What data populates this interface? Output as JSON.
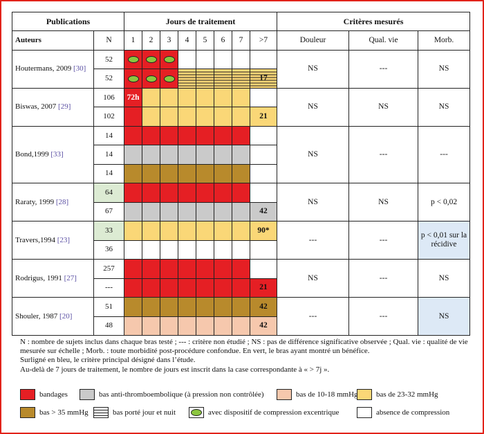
{
  "header": {
    "publications": "Publications",
    "jours": "Jours de traitement",
    "criteres": "Critères mesurés",
    "auteurs": "Auteurs",
    "n": "N",
    "days": [
      "1",
      "2",
      "3",
      "4",
      "5",
      "6",
      "7",
      ">7"
    ],
    "douleur": "Douleur",
    "qual_vie": "Qual. vie",
    "morb": "Morb."
  },
  "studies": [
    {
      "name": "Houtermans, 2009",
      "ref": "[30]",
      "douleur": "NS",
      "qual": "---",
      "morb": "NS",
      "arms": [
        {
          "n": "52",
          "cells": [
            "r",
            "r",
            "r",
            "n",
            "n",
            "n",
            "n",
            "n"
          ],
          "ovals": [
            0,
            1,
            2
          ],
          "val": ""
        },
        {
          "n": "52",
          "cells": [
            "r",
            "r",
            "r",
            "yh",
            "yh",
            "yh",
            "yh",
            "yh"
          ],
          "ovals": [
            0,
            1,
            2
          ],
          "val": "17"
        }
      ]
    },
    {
      "name": "Biswas, 2007",
      "ref": "[29]",
      "douleur": "NS",
      "qual": "NS",
      "morb": "NS",
      "arms": [
        {
          "n": "106",
          "cells": [
            "r",
            "y",
            "y",
            "y",
            "y",
            "y",
            "y",
            "n"
          ],
          "ovals": [],
          "val": "",
          "first": "72h"
        },
        {
          "n": "102",
          "cells": [
            "r",
            "y",
            "y",
            "y",
            "y",
            "y",
            "y",
            "y"
          ],
          "ovals": [],
          "val": "21"
        }
      ]
    },
    {
      "name": "Bond,1999",
      "ref": "[33]",
      "douleur": "NS",
      "qual": "---",
      "morb": "---",
      "arms": [
        {
          "n": "14",
          "cells": [
            "r",
            "r",
            "r",
            "r",
            "r",
            "r",
            "r",
            "n"
          ],
          "ovals": [],
          "val": ""
        },
        {
          "n": "14",
          "cells": [
            "g",
            "g",
            "g",
            "g",
            "g",
            "g",
            "g",
            "n"
          ],
          "ovals": [],
          "val": ""
        },
        {
          "n": "14",
          "cells": [
            "o",
            "o",
            "o",
            "o",
            "o",
            "o",
            "o",
            "n"
          ],
          "ovals": [],
          "val": ""
        }
      ]
    },
    {
      "name": "Raraty, 1999",
      "ref": "[28]",
      "douleur": "NS",
      "qual": "NS",
      "morb": "p < 0,02",
      "arms": [
        {
          "n": "64",
          "nHighlight": true,
          "cells": [
            "r",
            "r",
            "r",
            "r",
            "r",
            "r",
            "r",
            "n"
          ],
          "ovals": [],
          "val": ""
        },
        {
          "n": "67",
          "cells": [
            "g",
            "g",
            "g",
            "g",
            "g",
            "g",
            "g",
            "g"
          ],
          "ovals": [],
          "val": "42"
        }
      ]
    },
    {
      "name": "Travers,1994",
      "ref": "[23]",
      "douleur": "---",
      "qual": "---",
      "morb": "p < 0,01 sur la récidive",
      "morbHighlight": true,
      "arms": [
        {
          "n": "33",
          "nHighlight": true,
          "cells": [
            "y",
            "y",
            "y",
            "y",
            "y",
            "y",
            "y",
            "y"
          ],
          "ovals": [],
          "val": "90*"
        },
        {
          "n": "36",
          "cells": [
            "n",
            "n",
            "n",
            "n",
            "n",
            "n",
            "n",
            "n"
          ],
          "ovals": [],
          "val": ""
        }
      ]
    },
    {
      "name": "Rodrigus, 1991",
      "ref": "[27]",
      "douleur": "NS",
      "qual": "---",
      "morb": "NS",
      "arms": [
        {
          "n": "257",
          "cells": [
            "r",
            "r",
            "r",
            "r",
            "r",
            "r",
            "r",
            "n"
          ],
          "ovals": [],
          "val": ""
        },
        {
          "n": "---",
          "cells": [
            "r",
            "r",
            "r",
            "r",
            "r",
            "r",
            "r",
            "r"
          ],
          "ovals": [],
          "val": "21"
        }
      ]
    },
    {
      "name": "Shouler, 1987",
      "ref": "[20]",
      "douleur": "---",
      "qual": "---",
      "morb": "NS",
      "morbHighlight": true,
      "arms": [
        {
          "n": "51",
          "cells": [
            "o",
            "o",
            "o",
            "o",
            "o",
            "o",
            "o",
            "o"
          ],
          "ovals": [],
          "val": "42"
        },
        {
          "n": "48",
          "cells": [
            "p",
            "p",
            "p",
            "p",
            "p",
            "p",
            "p",
            "p"
          ],
          "ovals": [],
          "val": "42"
        }
      ]
    }
  ],
  "notes": [
    "N : nombre de sujets inclus dans chaque bras testé ; --- : critère non étudié ; NS : pas de différence significative observée ; Qual. vie : qualité de vie mesurée sur échelle ; Morb. : toute morbidité post-procédure confondue.  En vert, le bras ayant montré un bénéfice.",
    "Surligné en bleu, le critère principal désigné dans l’étude.",
    "Au-delà de 7 jours de traitement, le nombre de jours est inscrit dans la case correspondante à « > 7j »."
  ],
  "legend": {
    "bandages": "bandages",
    "anti": "bas anti-thromboembolique (à pression non contrôlée)",
    "b1018": "bas de 10-18 mmHg",
    "b2332": "bas de 23-32 mmHg",
    "b35": "bas > 35 mmHg",
    "jour_nuit": "bas porté jour et nuit",
    "excentrique": "avec dispositif de compression excentrique",
    "absence": "absence de compression"
  },
  "colors": {
    "red": "#e51f24",
    "gray": "#cacaca",
    "ochre": "#b88a2c",
    "peach": "#f6c8ad",
    "yellow": "#fad777",
    "green": "#8cc63f",
    "blue": "#dde9f6"
  }
}
